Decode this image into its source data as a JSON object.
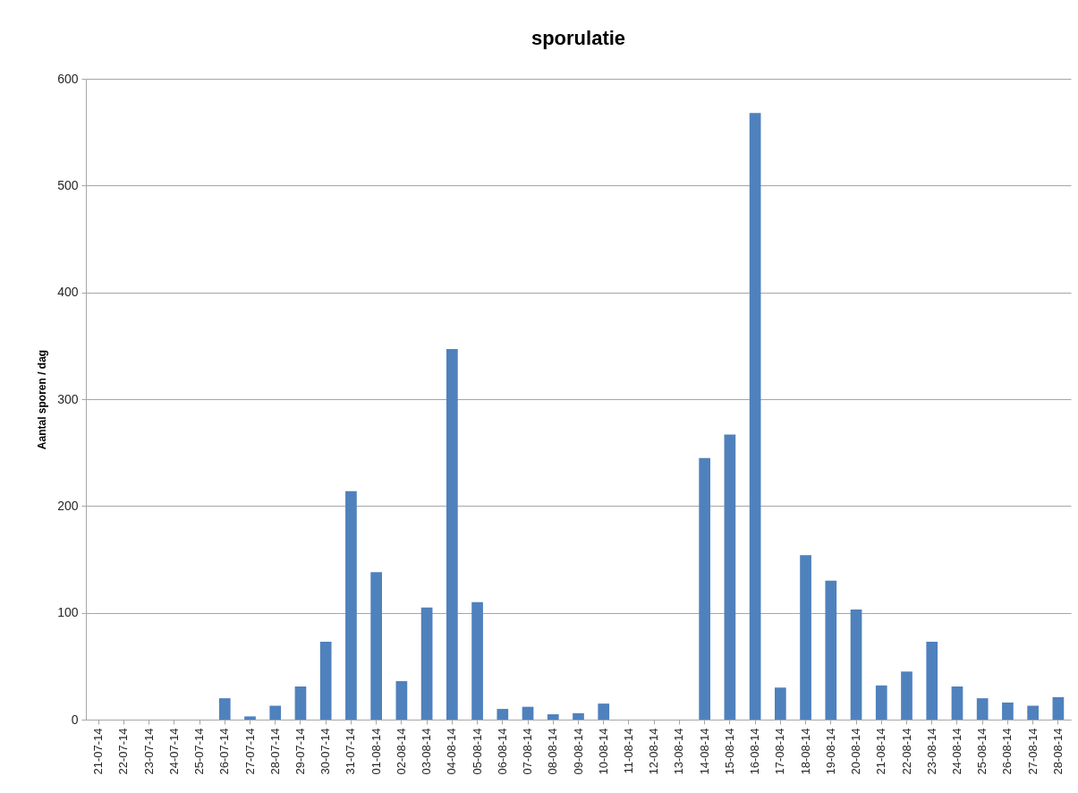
{
  "chart_data": {
    "type": "bar",
    "title": "sporulatie",
    "ylabel": "Aantal sporen / dag",
    "categories": [
      "21-07-14",
      "22-07-14",
      "23-07-14",
      "24-07-14",
      "25-07-14",
      "26-07-14",
      "27-07-14",
      "28-07-14",
      "29-07-14",
      "30-07-14",
      "31-07-14",
      "01-08-14",
      "02-08-14",
      "03-08-14",
      "04-08-14",
      "05-08-14",
      "06-08-14",
      "07-08-14",
      "08-08-14",
      "09-08-14",
      "10-08-14",
      "11-08-14",
      "12-08-14",
      "13-08-14",
      "14-08-14",
      "15-08-14",
      "16-08-14",
      "17-08-14",
      "18-08-14",
      "19-08-14",
      "20-08-14",
      "21-08-14",
      "22-08-14",
      "23-08-14",
      "24-08-14",
      "25-08-14",
      "26-08-14",
      "27-08-14",
      "28-08-14"
    ],
    "values": [
      0,
      0,
      0,
      0,
      0,
      20,
      3,
      13,
      31,
      73,
      214,
      138,
      36,
      105,
      347,
      110,
      10,
      12,
      5,
      6,
      15,
      0,
      0,
      0,
      245,
      267,
      568,
      30,
      154,
      130,
      103,
      32,
      45,
      73,
      31,
      20,
      16,
      13,
      21
    ],
    "color": "#4f81bd",
    "ylim": [
      0,
      600
    ],
    "yticks": [
      0,
      100,
      200,
      300,
      400,
      500,
      600
    ],
    "grid": "y"
  }
}
